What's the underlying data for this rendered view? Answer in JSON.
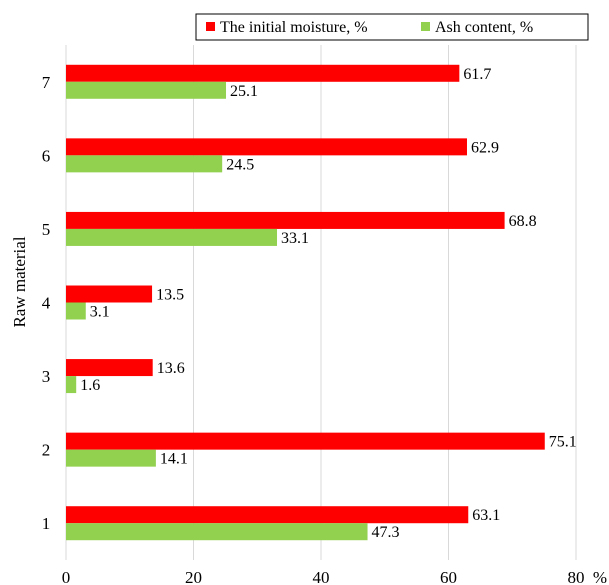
{
  "chart_data": {
    "type": "bar",
    "orientation": "horizontal",
    "categories": [
      "1",
      "2",
      "3",
      "4",
      "5",
      "6",
      "7"
    ],
    "series": [
      {
        "name": "The initial moisture, %",
        "color": "#ff0000",
        "values": [
          63.1,
          75.1,
          13.6,
          13.5,
          68.8,
          62.9,
          61.7
        ]
      },
      {
        "name": "Ash content, %",
        "color": "#92d050",
        "values": [
          47.3,
          14.1,
          1.6,
          3.1,
          33.1,
          24.5,
          25.1
        ]
      }
    ],
    "xticks": [
      "0",
      "20",
      "40",
      "60",
      "80"
    ],
    "xunit": "%",
    "ylabel": "Raw material",
    "xlim": [
      0,
      80
    ],
    "grid": "vertical",
    "legend_position": "top-right"
  }
}
